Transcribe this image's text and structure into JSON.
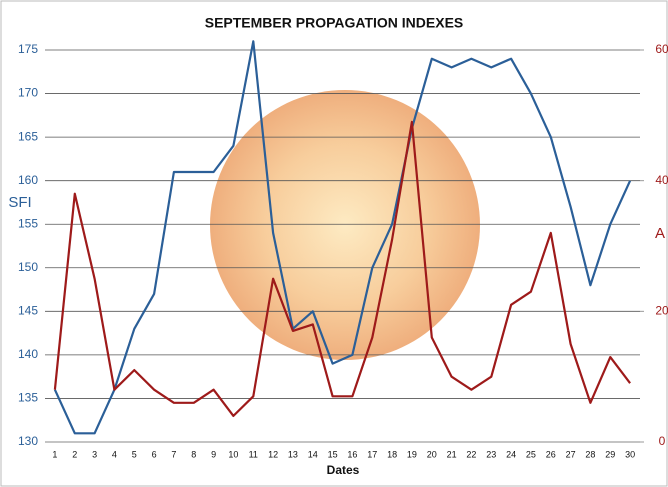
{
  "chart_data": {
    "type": "line",
    "title": "SEPTEMBER PROPAGATION  INDEXES",
    "x_label": "Dates",
    "y_label": "SFI",
    "y2_label": "A",
    "categories": [
      "1",
      "2",
      "3",
      "4",
      "5",
      "6",
      "7",
      "8",
      "9",
      "10",
      "11",
      "12",
      "13",
      "14",
      "15",
      "16",
      "17",
      "18",
      "19",
      "20",
      "21",
      "22",
      "23",
      "24",
      "25",
      "26",
      "27",
      "28",
      "29",
      "30"
    ],
    "series": [
      {
        "name": "SFI",
        "color": "#2b5f98",
        "values": [
          136,
          131,
          131,
          136,
          143,
          147,
          161,
          161,
          161,
          164,
          176,
          154,
          143,
          145,
          139,
          140,
          150,
          155,
          166,
          174,
          173,
          174,
          173,
          174,
          170,
          165,
          157,
          148,
          155,
          160
        ]
      },
      {
        "name": "A",
        "color": "#9e1a1a",
        "axis": "y2",
        "values": [
          8,
          38,
          25,
          8,
          11,
          8,
          6,
          6,
          8,
          4,
          7,
          25,
          17,
          18,
          7,
          7,
          16,
          31,
          49,
          16,
          10,
          8,
          10,
          21,
          23,
          32,
          15,
          6,
          13,
          9
        ]
      }
    ],
    "ylim": [
      130,
      175
    ],
    "yticks": [
      130,
      135,
      140,
      145,
      150,
      155,
      160,
      165,
      170,
      175
    ],
    "y2lim": [
      0,
      60
    ],
    "y2ticks": [
      0,
      20,
      40,
      60
    ],
    "grid": true
  }
}
